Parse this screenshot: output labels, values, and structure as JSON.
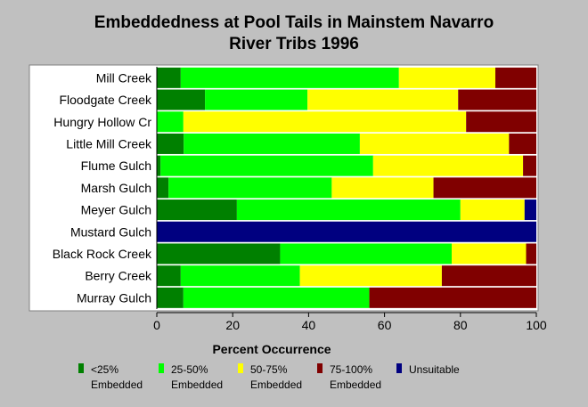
{
  "chart_data": {
    "type": "bar",
    "orientation": "horizontal",
    "stacked": true,
    "title_lines": [
      "Embeddedness at Pool Tails in Mainstem Navarro",
      "River Tribs 1996"
    ],
    "xlabel": "Percent Occurrence",
    "ylabel": "",
    "xlim": [
      0,
      100
    ],
    "xticks": [
      "0",
      "20",
      "40",
      "60",
      "80",
      "100"
    ],
    "grid": false,
    "legend_position": "bottom",
    "categories": [
      "Mill Creek",
      "Floodgate Creek",
      "Hungry Hollow Cr",
      "Little Mill Creek",
      "Flume Gulch",
      "Marsh Gulch",
      "Meyer Gulch",
      "Mustard Gulch",
      "Black Rock Creek",
      "Berry Creek",
      "Murray Gulch"
    ],
    "series": [
      {
        "name": "<25% Embedded",
        "legend_lines": [
          "<25%",
          "Embedded"
        ],
        "color": "#008000",
        "values": [
          6.3,
          12.7,
          0,
          7.1,
          1.0,
          3.1,
          21.1,
          0,
          32.5,
          6.3,
          7.0
        ]
      },
      {
        "name": "25-50% Embedded",
        "legend_lines": [
          "25-50%",
          "Embedded"
        ],
        "color": "#00ff00",
        "values": [
          57.5,
          27.0,
          7.0,
          46.4,
          56.0,
          43.0,
          58.9,
          0,
          45.2,
          31.4,
          49.0
        ]
      },
      {
        "name": "50-75% Embedded",
        "legend_lines": [
          "50-75%",
          "Embedded"
        ],
        "color": "#ffff00",
        "values": [
          25.4,
          39.7,
          74.5,
          39.3,
          39.5,
          26.8,
          16.9,
          0,
          19.6,
          37.4,
          0
        ]
      },
      {
        "name": "75-100% Embedded",
        "legend_lines": [
          "75-100%",
          "Embedded"
        ],
        "color": "#800000",
        "values": [
          10.8,
          20.6,
          18.5,
          7.2,
          3.5,
          27.1,
          0,
          0,
          2.7,
          24.9,
          44.0
        ]
      },
      {
        "name": "Unsuitable",
        "legend_lines": [
          "Unsuitable",
          ""
        ],
        "color": "#000080",
        "values": [
          0,
          0,
          0,
          0,
          0,
          0,
          3.1,
          100,
          0,
          0,
          0
        ]
      }
    ]
  }
}
